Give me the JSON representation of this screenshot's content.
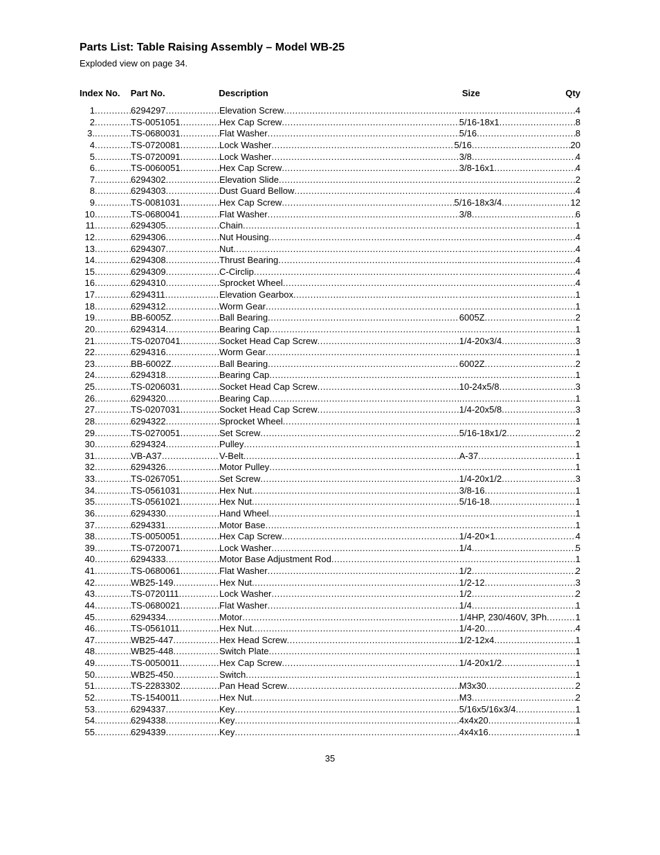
{
  "title": "Parts List: Table Raising Assembly – Model WB-25",
  "subtitle": "Exploded view on page 34.",
  "headers": {
    "index": "Index No.",
    "part": "Part No.",
    "desc": "Description",
    "size": "Size",
    "qty": "Qty"
  },
  "page_number": "35",
  "rows": [
    {
      "index": "1",
      "part": "6294297",
      "desc": "Elevation Screw",
      "size": "",
      "qty": "4"
    },
    {
      "index": "2",
      "part": "TS-0051051",
      "desc": "Hex Cap Screw",
      "size": "5/16-18x1",
      "qty": "8"
    },
    {
      "index": "3.",
      "part": "TS-0680031",
      "desc": "Flat Washer",
      "size": "5/16",
      "qty": "8"
    },
    {
      "index": "4",
      "part": "TS-0720081",
      "desc": "Lock Washer",
      "size": "5/16",
      "qty": "20"
    },
    {
      "index": "5",
      "part": "TS-0720091",
      "desc": "Lock Washer",
      "size": "3/8",
      "qty": "4"
    },
    {
      "index": "6",
      "part": "TS-0060051",
      "desc": "Hex Cap Screw",
      "size": "3/8-16x1",
      "qty": "4"
    },
    {
      "index": "7",
      "part": "6294302",
      "desc": "Elevation Slide",
      "size": "",
      "qty": "2"
    },
    {
      "index": "8",
      "part": "6294303",
      "desc": "Dust Guard Bellow",
      "size": "",
      "qty": "4"
    },
    {
      "index": "9",
      "part": "TS-0081031",
      "desc": "Hex Cap Screw",
      "size": "5/16-18x3/4",
      "qty": "12"
    },
    {
      "index": "10",
      "part": "TS-0680041",
      "desc": "Flat Washer",
      "size": "3/8",
      "qty": "6"
    },
    {
      "index": "11",
      "part": "6294305",
      "desc": "Chain",
      "size": "",
      "qty": "1"
    },
    {
      "index": "12",
      "part": "6294306",
      "desc": "Nut Housing",
      "size": "",
      "qty": "4"
    },
    {
      "index": "13",
      "part": "6294307",
      "desc": "Nut",
      "size": "",
      "qty": "4"
    },
    {
      "index": "14",
      "part": "6294308",
      "desc": "Thrust Bearing",
      "size": "",
      "qty": "4"
    },
    {
      "index": "15",
      "part": "6294309",
      "desc": "C-Circlip",
      "size": "",
      "qty": "4"
    },
    {
      "index": "16",
      "part": "6294310",
      "desc": "Sprocket Wheel",
      "size": "",
      "qty": "4"
    },
    {
      "index": "17",
      "part": "6294311",
      "desc": "Elevation Gearbox",
      "size": "",
      "qty": "1"
    },
    {
      "index": "18",
      "part": "6294312",
      "desc": "Worm Gear",
      "size": "",
      "qty": "1"
    },
    {
      "index": "19",
      "part": "BB-6005Z",
      "desc": "Ball Bearing",
      "size": "6005Z",
      "qty": "2"
    },
    {
      "index": "20",
      "part": "6294314",
      "desc": "Bearing Cap",
      "size": "",
      "qty": "1"
    },
    {
      "index": "21",
      "part": "TS-0207041",
      "desc": "Socket Head Cap Screw",
      "size": "1/4-20x3/4",
      "qty": "3"
    },
    {
      "index": "22",
      "part": "6294316",
      "desc": "Worm Gear",
      "size": "",
      "qty": "1"
    },
    {
      "index": "23",
      "part": "BB-6002Z",
      "desc": "Ball Bearing",
      "size": "6002Z",
      "qty": "2"
    },
    {
      "index": "24",
      "part": "6294318",
      "desc": "Bearing Cap",
      "size": "",
      "qty": "1"
    },
    {
      "index": "25",
      "part": "TS-0206031",
      "desc": "Socket Head Cap Screw",
      "size": "10-24x5/8",
      "qty": "3"
    },
    {
      "index": "26",
      "part": "6294320",
      "desc": "Bearing Cap",
      "size": "",
      "qty": "1"
    },
    {
      "index": "27",
      "part": "TS-0207031",
      "desc": "Socket Head Cap Screw",
      "size": "1/4-20x5/8",
      "qty": "3"
    },
    {
      "index": "28",
      "part": "6294322",
      "desc": "Sprocket Wheel",
      "size": "",
      "qty": "1"
    },
    {
      "index": "29",
      "part": "TS-0270051",
      "desc": "Set Screw",
      "size": "5/16-18x1/2",
      "qty": "2"
    },
    {
      "index": "30",
      "part": "6294324",
      "desc": "Pulley",
      "size": "",
      "qty": "1"
    },
    {
      "index": "31",
      "part": "VB-A37",
      "desc": "V-Belt",
      "size": "A-37",
      "qty": "1"
    },
    {
      "index": "32",
      "part": "6294326",
      "desc": "Motor Pulley",
      "size": "",
      "qty": "1"
    },
    {
      "index": "33",
      "part": "TS-0267051",
      "desc": "Set Screw",
      "size": "1/4-20x1/2",
      "qty": "3"
    },
    {
      "index": "34",
      "part": "TS-0561031",
      "desc": "Hex Nut",
      "size": "3/8-16",
      "qty": "1"
    },
    {
      "index": "35",
      "part": "TS-0561021",
      "desc": "Hex Nut",
      "size": "5/16-18",
      "qty": "1"
    },
    {
      "index": "36",
      "part": "6294330",
      "desc": "Hand Wheel",
      "size": "",
      "qty": "1"
    },
    {
      "index": "37",
      "part": "6294331",
      "desc": "Motor Base",
      "size": "",
      "qty": "1"
    },
    {
      "index": "38",
      "part": "TS-0050051",
      "desc": "Hex Cap Screw",
      "size": "1/4-20×1",
      "qty": "4"
    },
    {
      "index": "39",
      "part": "TS-0720071",
      "desc": "Lock Washer",
      "size": "1/4",
      "qty": "5"
    },
    {
      "index": "40",
      "part": "6294333",
      "desc": "Motor Base Adjustment Rod",
      "size": "",
      "qty": "1"
    },
    {
      "index": "41",
      "part": "TS-0680061",
      "desc": "Flat Washer",
      "size": "1/2",
      "qty": "2"
    },
    {
      "index": "42",
      "part": "WB25-149",
      "desc": "Hex Nut",
      "size": "1/2-12",
      "qty": "3"
    },
    {
      "index": "43",
      "part": "TS-0720111",
      "desc": "Lock Washer",
      "size": "1/2",
      "qty": "2"
    },
    {
      "index": "44",
      "part": "TS-0680021",
      "desc": "Flat Washer",
      "size": "1/4",
      "qty": "1"
    },
    {
      "index": "45",
      "part": "6294334",
      "desc": "Motor",
      "size": "1/4HP, 230/460V, 3Ph",
      "qty": "1"
    },
    {
      "index": "46",
      "part": "TS-0561011",
      "desc": "Hex Nut",
      "size": "1/4-20",
      "qty": "4"
    },
    {
      "index": "47",
      "part": "WB25-447",
      "desc": "Hex Head Screw",
      "size": "1/2-12x4",
      "qty": "1"
    },
    {
      "index": "48",
      "part": "WB25-448",
      "desc": "Switch Plate",
      "size": "",
      "qty": "1"
    },
    {
      "index": "49",
      "part": "TS-0050011",
      "desc": "Hex Cap Screw",
      "size": "1/4-20x1/2",
      "qty": "1"
    },
    {
      "index": "50",
      "part": "WB25-450",
      "desc": "Switch",
      "size": "",
      "qty": "1"
    },
    {
      "index": "51",
      "part": "TS-2283302",
      "desc": "Pan Head Screw",
      "size": "M3x30",
      "qty": "2"
    },
    {
      "index": "52",
      "part": "TS-1540011",
      "desc": "Hex Nut",
      "size": "M3",
      "qty": "2"
    },
    {
      "index": "53",
      "part": "6294337",
      "desc": "Key",
      "size": "5/16x5/16x3/4",
      "qty": "1"
    },
    {
      "index": "54",
      "part": "6294338",
      "desc": "Key",
      "size": "4x4x20",
      "qty": "1"
    },
    {
      "index": "55",
      "part": "6294339",
      "desc": "Key",
      "size": "4x4x16",
      "qty": "1"
    }
  ]
}
